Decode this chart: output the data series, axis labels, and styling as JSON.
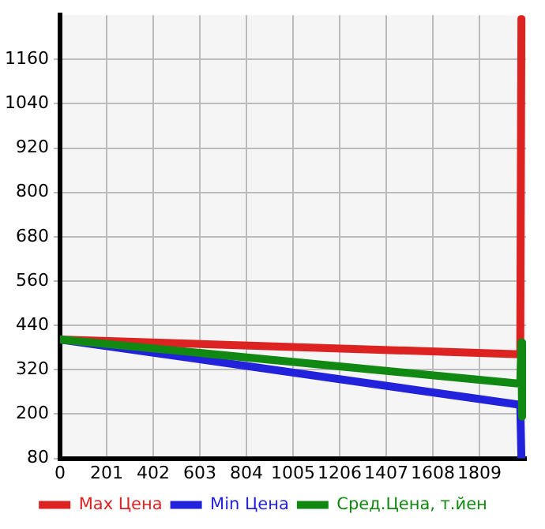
{
  "chart_data": {
    "type": "line",
    "xlim": [
      0,
      2010
    ],
    "xticks": [
      0,
      201,
      402,
      603,
      804,
      1005,
      1206,
      1407,
      1608,
      1809
    ],
    "ylim": [
      80,
      1280
    ],
    "yticks": [
      80,
      200,
      320,
      440,
      560,
      680,
      800,
      920,
      1040,
      1160
    ],
    "grid": true,
    "legend": "bottom",
    "marker": "none",
    "series": [
      {
        "name": "Max Цена",
        "color": "#dd2222",
        "x": [
          0,
          1985,
          1990
        ],
        "values": [
          402,
          362,
          1270
        ]
      },
      {
        "name": "Min Цена",
        "color": "#2222dd",
        "x": [
          0,
          1985,
          1990
        ],
        "values": [
          402,
          225,
          80
        ]
      },
      {
        "name": "Сред.Цена, т.йен",
        "color": "#118811",
        "x": [
          0,
          1985,
          1990,
          1993
        ],
        "values": [
          402,
          282,
          394,
          193
        ]
      }
    ]
  }
}
